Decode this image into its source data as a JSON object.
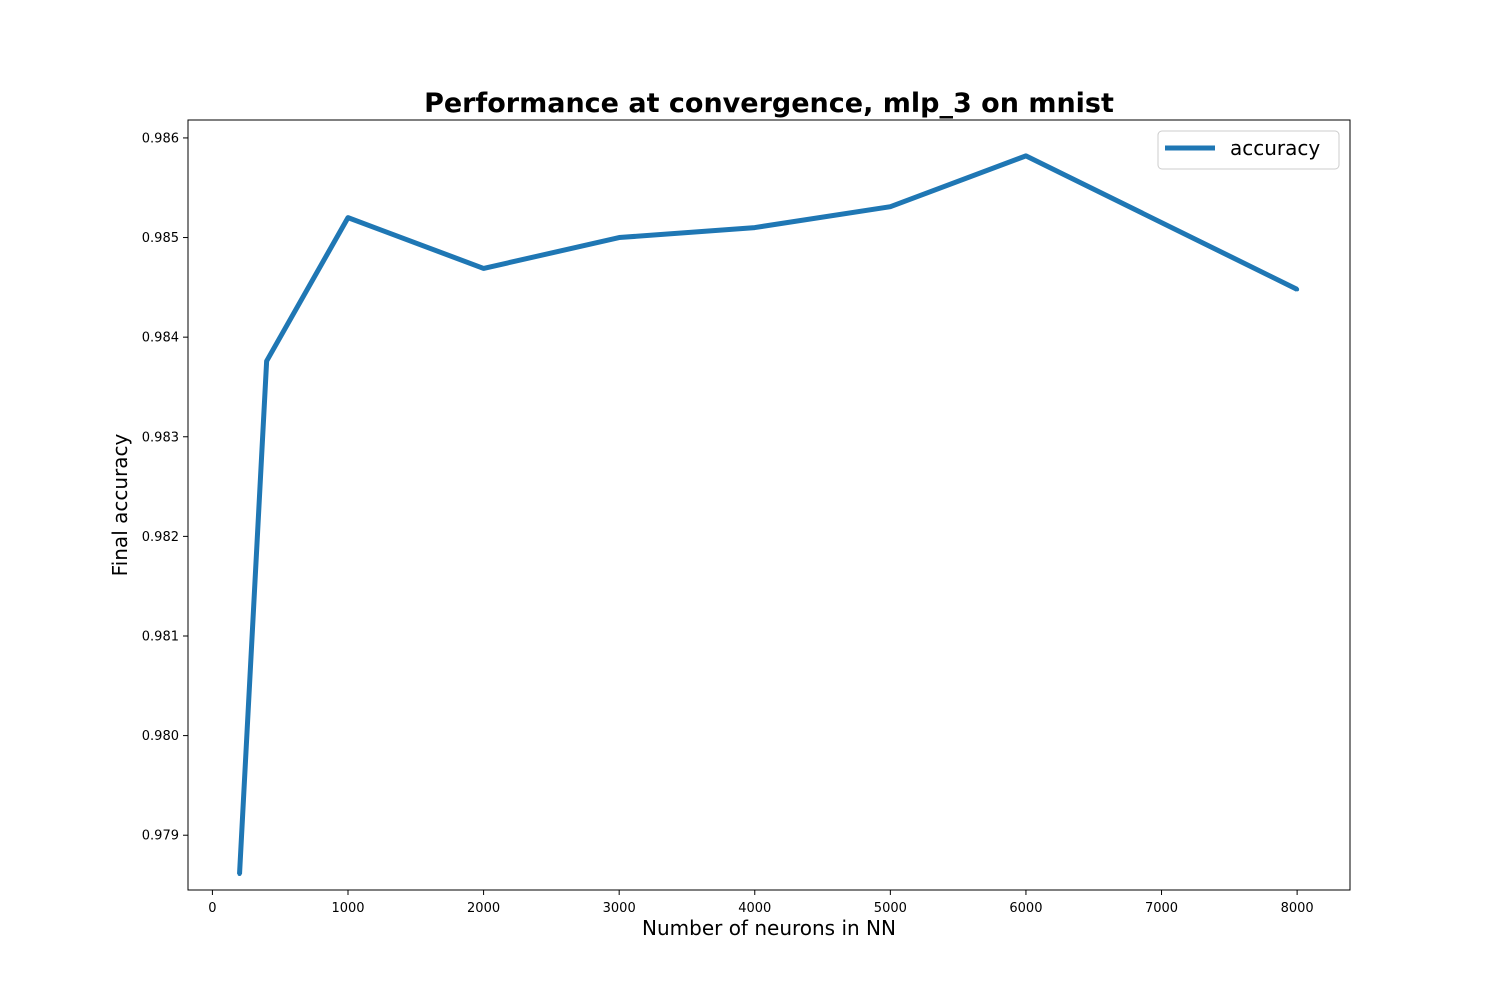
{
  "chart_data": {
    "type": "line",
    "title": "Performance at convergence, mlp_3 on mnist",
    "xlabel": "Number of neurons in NN",
    "ylabel": "Final accuracy",
    "xlim": [
      -180,
      8390
    ],
    "ylim": [
      0.97845,
      0.98618
    ],
    "x_ticks": [
      0,
      1000,
      2000,
      3000,
      4000,
      5000,
      6000,
      7000,
      8000
    ],
    "x_tick_labels": [
      "0",
      "1000",
      "2000",
      "3000",
      "4000",
      "5000",
      "6000",
      "7000",
      "8000"
    ],
    "y_ticks": [
      0.979,
      0.98,
      0.981,
      0.982,
      0.983,
      0.984,
      0.985,
      0.986
    ],
    "y_tick_labels": [
      "0.979",
      "0.980",
      "0.981",
      "0.982",
      "0.983",
      "0.984",
      "0.985",
      "0.986"
    ],
    "grid": false,
    "legend_position": "upper right",
    "series": [
      {
        "name": "accuracy",
        "color": "#1f77b4",
        "x": [
          200,
          400,
          1000,
          2000,
          3000,
          4000,
          5000,
          6000,
          8000
        ],
        "y": [
          0.97861,
          0.98376,
          0.9852,
          0.98469,
          0.985,
          0.9851,
          0.98531,
          0.98582,
          0.98448
        ]
      }
    ]
  }
}
